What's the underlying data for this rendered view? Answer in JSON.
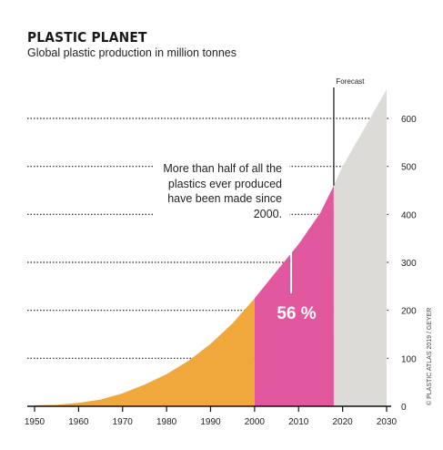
{
  "header": {
    "title": "PLASTIC PLANET",
    "subtitle": "Global plastic production in million tonnes"
  },
  "annotation": {
    "text": "More than half of all the plastics ever produced have been made since 2000.",
    "percentage": "56 %",
    "forecast_label": "Forecast"
  },
  "credit": "© PLASTIC ATLAS 2019 / GEYER",
  "colors": {
    "pre_2000": "#f0a83c",
    "since_2000": "#e2589f",
    "forecast": "#dcdbd7",
    "gridline": "#222222"
  },
  "chart_data": {
    "type": "area",
    "title": "PLASTIC PLANET",
    "subtitle": "Global plastic production in million tonnes",
    "xlabel": "",
    "ylabel": "",
    "xlim": [
      1950,
      2030
    ],
    "ylim": [
      0,
      600
    ],
    "x_ticks": [
      1950,
      1960,
      1970,
      1980,
      1990,
      2000,
      2010,
      2020,
      2030
    ],
    "y_ticks": [
      0,
      100,
      200,
      300,
      400,
      500,
      600
    ],
    "grid": "dotted horizontal",
    "series": [
      {
        "name": "",
        "x": [
          1950,
          1955,
          1960,
          1965,
          1970,
          1975,
          1980,
          1985,
          1990,
          1995,
          2000,
          2005,
          2010,
          2015,
          2018
        ],
        "y": [
          2,
          3,
          7,
          14,
          27,
          45,
          67,
          95,
          130,
          173,
          225,
          282,
          338,
          404,
          460
        ]
      },
      {
        "name": "Forecast",
        "x": [
          2018,
          2020,
          2025,
          2030
        ],
        "y": [
          460,
          500,
          580,
          660
        ]
      }
    ],
    "regions": [
      {
        "from": 1950,
        "to": 2000,
        "color": "#f0a83c"
      },
      {
        "from": 2000,
        "to": 2018,
        "color": "#e2589f",
        "label": "56 %"
      },
      {
        "from": 2018,
        "to": 2030,
        "color": "#dcdbd7",
        "label": "Forecast"
      }
    ]
  }
}
